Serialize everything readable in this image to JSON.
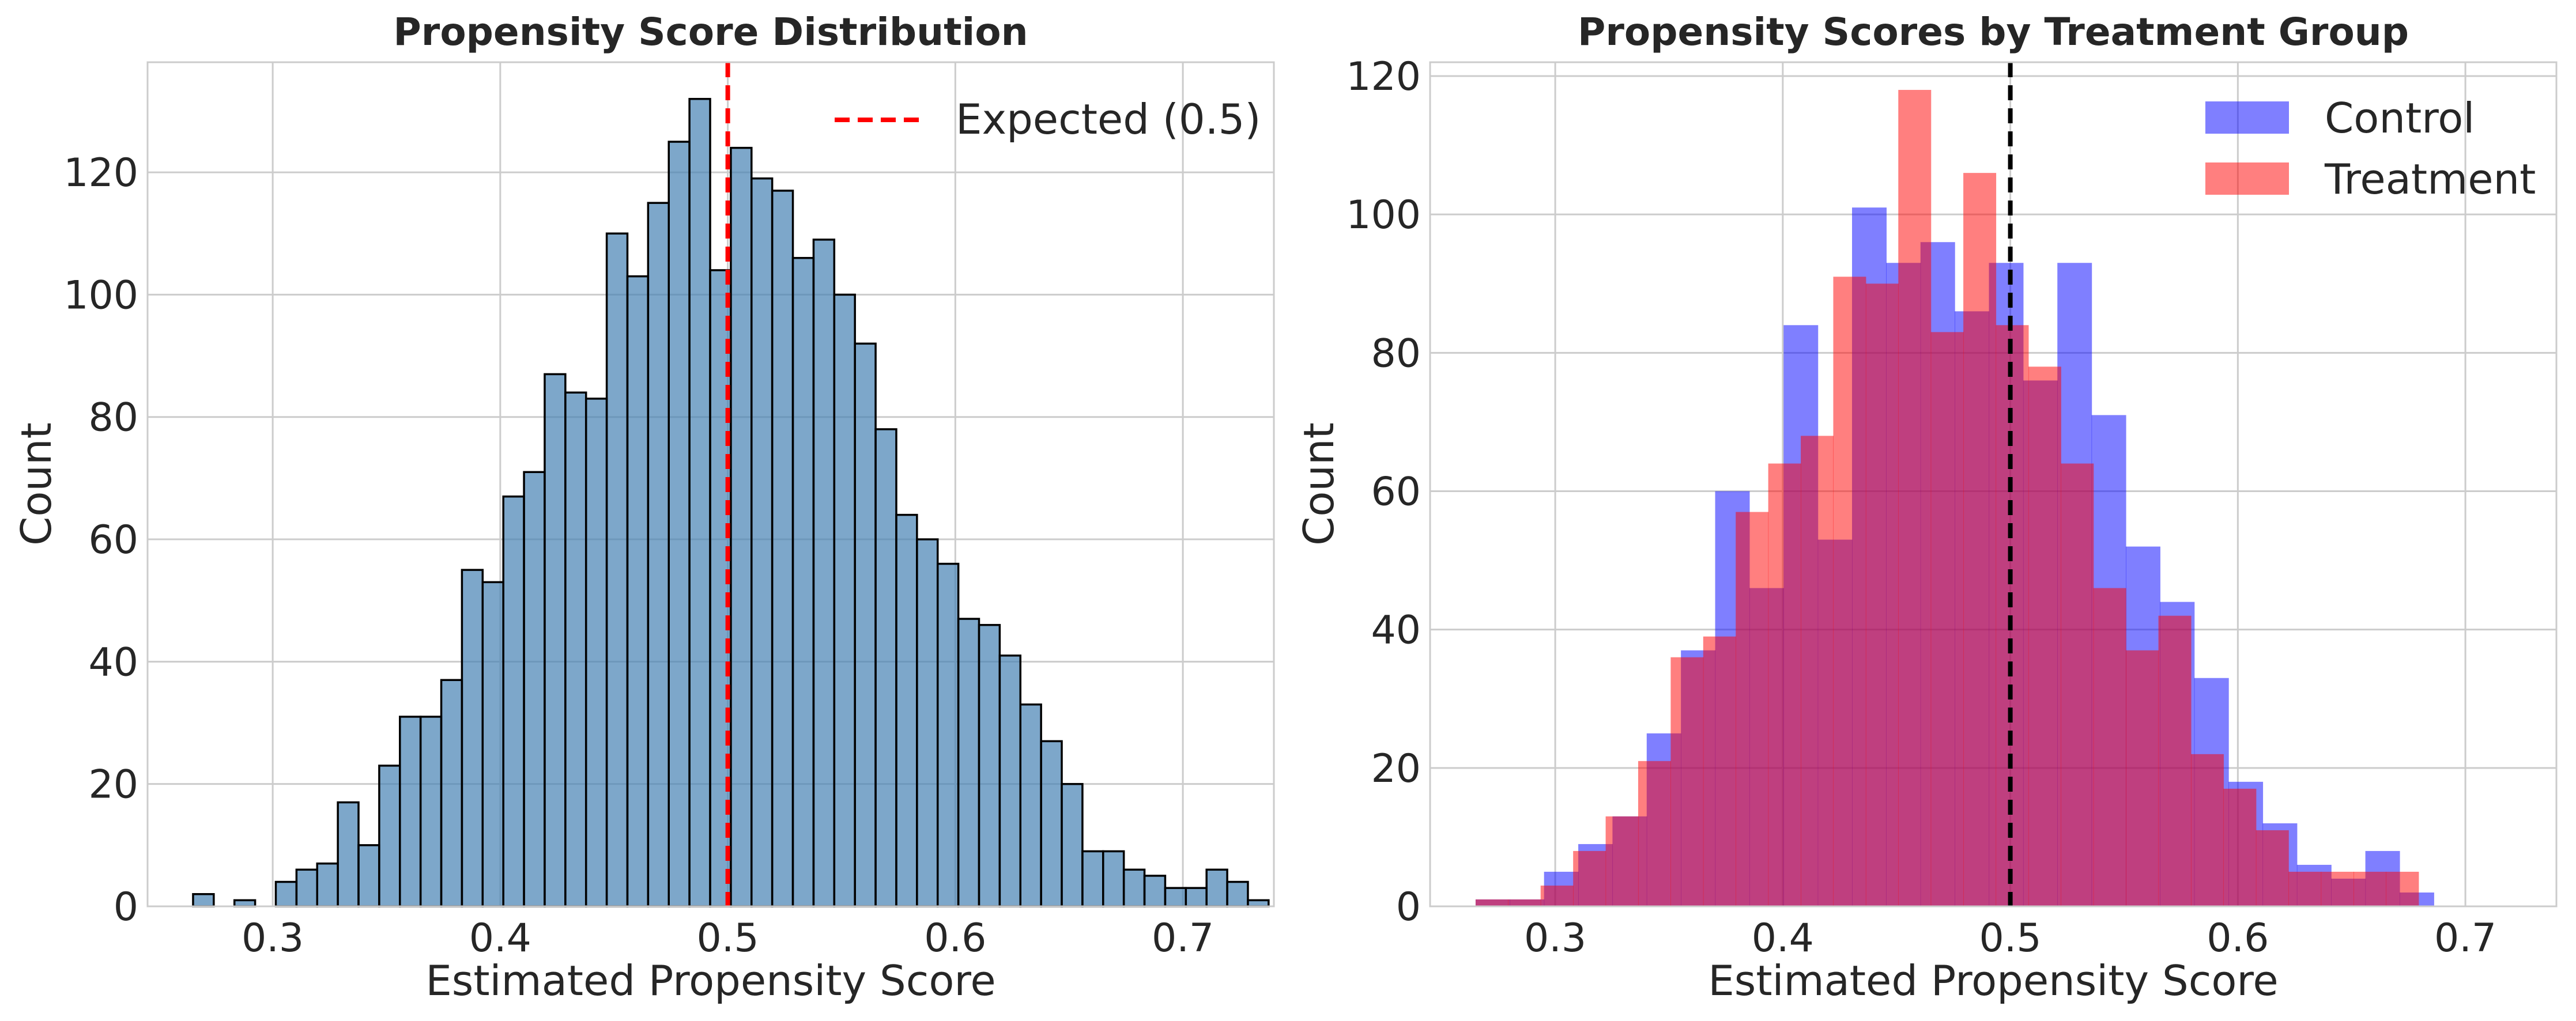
{
  "chart_data": [
    {
      "type": "histogram",
      "title": "Propensity Score Distribution",
      "xlabel": "Estimated Propensity Score",
      "ylabel": "Count",
      "xlim": [
        0.245,
        0.74
      ],
      "ylim": [
        0,
        138
      ],
      "xticks": [
        0.3,
        0.4,
        0.5,
        0.6,
        0.7
      ],
      "yticks": [
        0,
        20,
        40,
        60,
        80,
        100,
        120
      ],
      "grid": true,
      "legend_position": "top-right",
      "bar_color": "#4682b4",
      "bins": {
        "start": 0.265,
        "width": 0.00909,
        "counts": [
          2,
          0,
          1,
          0,
          4,
          6,
          7,
          17,
          10,
          23,
          31,
          31,
          37,
          55,
          53,
          67,
          71,
          87,
          84,
          83,
          110,
          103,
          115,
          125,
          132,
          104,
          124,
          119,
          117,
          106,
          109,
          100,
          92,
          78,
          64,
          60,
          56,
          47,
          46,
          41,
          33,
          27,
          20,
          9,
          9,
          6,
          5,
          3,
          3,
          6,
          4,
          1
        ]
      },
      "reference_line": {
        "x": 0.5,
        "label": "Expected (0.5)",
        "color": "#ff0000",
        "style": "dashed"
      }
    },
    {
      "type": "histogram",
      "title": "Propensity Scores by Treatment Group",
      "xlabel": "Estimated Propensity Score",
      "ylabel": "Count",
      "xlim": [
        0.245,
        0.74
      ],
      "ylim": [
        0,
        122
      ],
      "xticks": [
        0.3,
        0.4,
        0.5,
        0.6,
        0.7
      ],
      "yticks": [
        0,
        20,
        40,
        60,
        80,
        100,
        120
      ],
      "grid": true,
      "legend_position": "top-right",
      "series": [
        {
          "name": "Control",
          "color": "#0000ff",
          "opacity": 0.5,
          "start": 0.265,
          "width": 0.01504,
          "counts": [
            1,
            1,
            5,
            9,
            13,
            25,
            37,
            60,
            46,
            84,
            53,
            101,
            93,
            96,
            86,
            93,
            76,
            93,
            71,
            52,
            44,
            33,
            18,
            12,
            6,
            4,
            8,
            2
          ]
        },
        {
          "name": "Treatment",
          "color": "#ff0000",
          "opacity": 0.5,
          "start": 0.265,
          "width": 0.01429,
          "counts": [
            1,
            1,
            3,
            8,
            13,
            21,
            36,
            39,
            57,
            64,
            68,
            91,
            90,
            118,
            83,
            106,
            84,
            78,
            64,
            46,
            37,
            42,
            22,
            17,
            11,
            5,
            5,
            5,
            5
          ]
        }
      ],
      "reference_line": {
        "x": 0.5,
        "color": "#000000",
        "style": "dashed"
      }
    }
  ]
}
